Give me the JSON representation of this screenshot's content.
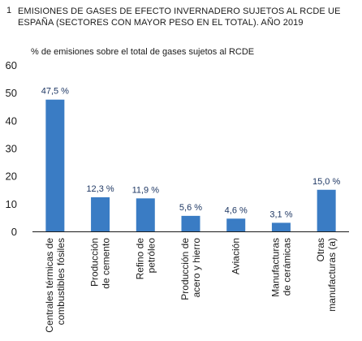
{
  "header": {
    "number": "1",
    "title": "EMISIONES DE GASES DE EFECTO INVERNADERO SUJETOS AL RCDE UE ESPAÑA (SECTORES CON MAYOR PESO EN EL TOTAL). AÑO 2019"
  },
  "colors": {
    "bar": "#3a7cc4",
    "axis": "#1a1a1a",
    "label": "#1f3864"
  },
  "chart_data": {
    "type": "bar",
    "title": "EMISIONES DE GASES DE EFECTO INVERNADERO SUJETOS AL RCDE UE ESPAÑA (SECTORES CON MAYOR PESO EN EL TOTAL). AÑO 2019",
    "ylabel": "% de emisiones sobre el total de gases sujetos al RCDE",
    "xlabel": "",
    "ylim": [
      0,
      60
    ],
    "yticks": [
      "0",
      "10",
      "20",
      "30",
      "40",
      "50",
      "60"
    ],
    "grid": false,
    "categories": [
      [
        "Centrales térmicas de",
        "combustibles fósiles"
      ],
      [
        "Producción",
        "de cemento"
      ],
      [
        "Refino de",
        "petróleo"
      ],
      [
        "Producción de",
        "acero y hierro"
      ],
      [
        "Aviación"
      ],
      [
        "Manufacturas",
        "de cerámicas"
      ],
      [
        "Otras",
        "manufacturas (a)"
      ]
    ],
    "values": [
      47.5,
      12.3,
      11.9,
      5.6,
      4.6,
      3.1,
      15.0
    ],
    "data_labels": [
      "47,5 %",
      "12,3 %",
      "11,9 %",
      "5,6 %",
      "4,6 %",
      "3,1 %",
      "15,0 %"
    ]
  }
}
